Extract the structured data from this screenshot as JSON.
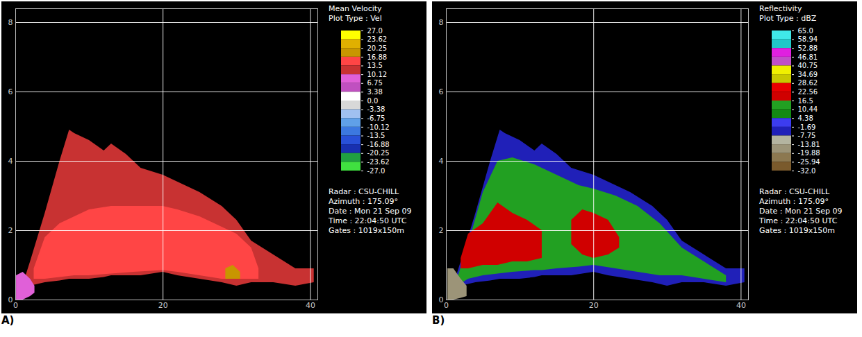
{
  "chart_data": [
    {
      "type": "area",
      "panel_label": "A)",
      "title": "Mean Velocity",
      "subtitle": "Plot Type : Vel",
      "info": [
        "Radar : CSU-CHILL",
        "Azimuth : 175.09°",
        "Date : Mon 21 Sep 09",
        "Time : 22:04:50 UTC",
        "Gates : 1019x150m"
      ],
      "xlim": [
        0,
        41
      ],
      "ylim": [
        0,
        8.4
      ],
      "xticks": [
        0,
        20,
        40
      ],
      "yticks": [
        0,
        2,
        4,
        6,
        8
      ],
      "grid": true,
      "colorbar": {
        "ticks": [
          {
            "value": 27,
            "label": "27.0"
          },
          23.62,
          20.25,
          16.88,
          13.5,
          10.12,
          6.75,
          3.38,
          {
            "value": 0,
            "label": "0.0"
          },
          -3.38,
          -6.75,
          -10.12,
          -13.5,
          -16.88,
          -20.25,
          -23.62,
          {
            "value": -27,
            "label": "-27.0"
          }
        ],
        "colors": [
          "#ffff00",
          "#e0b000",
          "#c89600",
          "#ff4545",
          "#c83232",
          "#e060d8",
          "#c050c0",
          "#ffffff",
          "#d8d8d8",
          "#a0c0f0",
          "#60a0e8",
          "#3c78e0",
          "#2850d8",
          "#1830b0",
          "#20a040",
          "#40e040"
        ]
      },
      "layers": [
        {
          "value": 12,
          "x": [
            0.8,
            2,
            4,
            6,
            7.3,
            8,
            10,
            12,
            13,
            15,
            17,
            20,
            22,
            25,
            28,
            30,
            32,
            35,
            38,
            40.5
          ],
          "low": [
            0.2,
            0.4,
            0.5,
            0.55,
            0.6,
            0.6,
            0.6,
            0.65,
            0.7,
            0.7,
            0.7,
            0.8,
            0.7,
            0.6,
            0.5,
            0.4,
            0.5,
            0.5,
            0.4,
            0.5
          ],
          "high": [
            0.3,
            1.1,
            2.5,
            4.0,
            4.9,
            4.8,
            4.6,
            4.3,
            4.5,
            4.2,
            3.8,
            3.6,
            3.4,
            3.1,
            2.7,
            2.3,
            1.7,
            1.3,
            0.9,
            0.9
          ]
        },
        {
          "value": 15,
          "x": [
            2.5,
            4,
            6,
            8,
            10,
            13,
            16,
            20,
            22,
            25,
            28,
            30,
            32,
            33
          ],
          "low": [
            0.6,
            0.6,
            0.65,
            0.7,
            0.7,
            0.75,
            0.8,
            0.85,
            0.8,
            0.7,
            0.6,
            0.6,
            0.6,
            0.6
          ],
          "high": [
            0.9,
            1.8,
            2.2,
            2.4,
            2.6,
            2.7,
            2.7,
            2.7,
            2.6,
            2.4,
            2.1,
            1.9,
            1.5,
            0.9
          ]
        },
        {
          "value": 18,
          "x": [
            28.5,
            29.5,
            30.5
          ],
          "low": [
            0.6,
            0.6,
            0.6
          ],
          "high": [
            0.9,
            1.0,
            0.8
          ]
        },
        {
          "value": 7,
          "x": [
            0.1,
            1,
            2,
            2.6
          ],
          "low": [
            0,
            0,
            0.1,
            0.2
          ],
          "high": [
            0.7,
            0.8,
            0.6,
            0.4
          ]
        }
      ]
    },
    {
      "type": "area",
      "panel_label": "B)",
      "title": "Reflectivity",
      "subtitle": "Plot Type : dBZ",
      "info": [
        "Radar : CSU-CHILL",
        "Azimuth : 175.09°",
        "Date : Mon 21 Sep 09",
        "Time : 22:04:50 UTC",
        "Gates : 1019x150m"
      ],
      "xlim": [
        0,
        41
      ],
      "ylim": [
        0,
        8.4
      ],
      "xticks": [
        0,
        20,
        40
      ],
      "yticks": [
        0,
        2,
        4,
        6,
        8
      ],
      "grid": true,
      "colorbar": {
        "ticks": [
          {
            "value": 65,
            "label": "65.0"
          },
          58.94,
          52.88,
          46.81,
          40.75,
          34.69,
          28.62,
          22.56,
          16.5,
          10.44,
          4.38,
          -1.69,
          -7.75,
          -13.81,
          -19.88,
          -25.94,
          {
            "value": -32,
            "label": "-32.0"
          }
        ],
        "colors": [
          "#40e8e8",
          "#20c8c8",
          "#e020e0",
          "#c050c8",
          "#f0f000",
          "#c8c800",
          "#e80000",
          "#d00000",
          "#22a022",
          "#138a13",
          "#3c3cf0",
          "#2020b8",
          "#b4b4a0",
          "#9c9478",
          "#8c7850",
          "#7a5a2c"
        ]
      },
      "layers": [
        {
          "value": -4,
          "x": [
            0.8,
            2,
            4,
            6,
            7.3,
            8,
            10,
            12,
            13,
            15,
            17,
            20,
            22,
            25,
            28,
            30,
            32,
            35,
            38,
            40.5
          ],
          "low": [
            0.2,
            0.4,
            0.5,
            0.55,
            0.6,
            0.6,
            0.6,
            0.65,
            0.7,
            0.7,
            0.7,
            0.8,
            0.7,
            0.6,
            0.5,
            0.4,
            0.5,
            0.5,
            0.4,
            0.5
          ],
          "high": [
            0.3,
            1.1,
            2.5,
            4.0,
            4.9,
            4.8,
            4.6,
            4.3,
            4.5,
            4.2,
            3.8,
            3.6,
            3.4,
            3.1,
            2.7,
            2.3,
            1.7,
            1.3,
            0.9,
            0.9
          ]
        },
        {
          "value": 13,
          "x": [
            1.5,
            3,
            5,
            7,
            9,
            12,
            13,
            15,
            18,
            20,
            23,
            26,
            29,
            32,
            35,
            38
          ],
          "low": [
            0.4,
            0.6,
            0.7,
            0.75,
            0.8,
            0.85,
            0.85,
            0.9,
            0.95,
            1.0,
            0.9,
            0.8,
            0.7,
            0.7,
            0.6,
            0.5
          ],
          "high": [
            0.6,
            1.6,
            3.1,
            4.0,
            4.1,
            3.9,
            3.8,
            3.6,
            3.3,
            3.2,
            3.0,
            2.7,
            2.2,
            1.5,
            1.1,
            0.7
          ]
        },
        {
          "value": 20,
          "x": [
            2,
            3,
            5,
            7,
            9,
            11,
            13
          ],
          "low": [
            0.9,
            0.9,
            1.0,
            1.0,
            1.1,
            1.1,
            1.2
          ],
          "high": [
            1.2,
            1.9,
            2.2,
            2.8,
            2.5,
            2.3,
            2.0
          ]
        },
        {
          "value": 20,
          "x": [
            17,
            18.5,
            20,
            22,
            23.5
          ],
          "low": [
            1.6,
            1.3,
            1.2,
            1.3,
            1.5
          ],
          "high": [
            2.3,
            2.6,
            2.5,
            2.3,
            1.8
          ]
        },
        {
          "value": -15,
          "x": [
            0.2,
            1,
            2,
            2.8
          ],
          "low": [
            0,
            0,
            0.05,
            0.1
          ],
          "high": [
            0.9,
            0.9,
            0.6,
            0.4
          ]
        }
      ]
    }
  ]
}
